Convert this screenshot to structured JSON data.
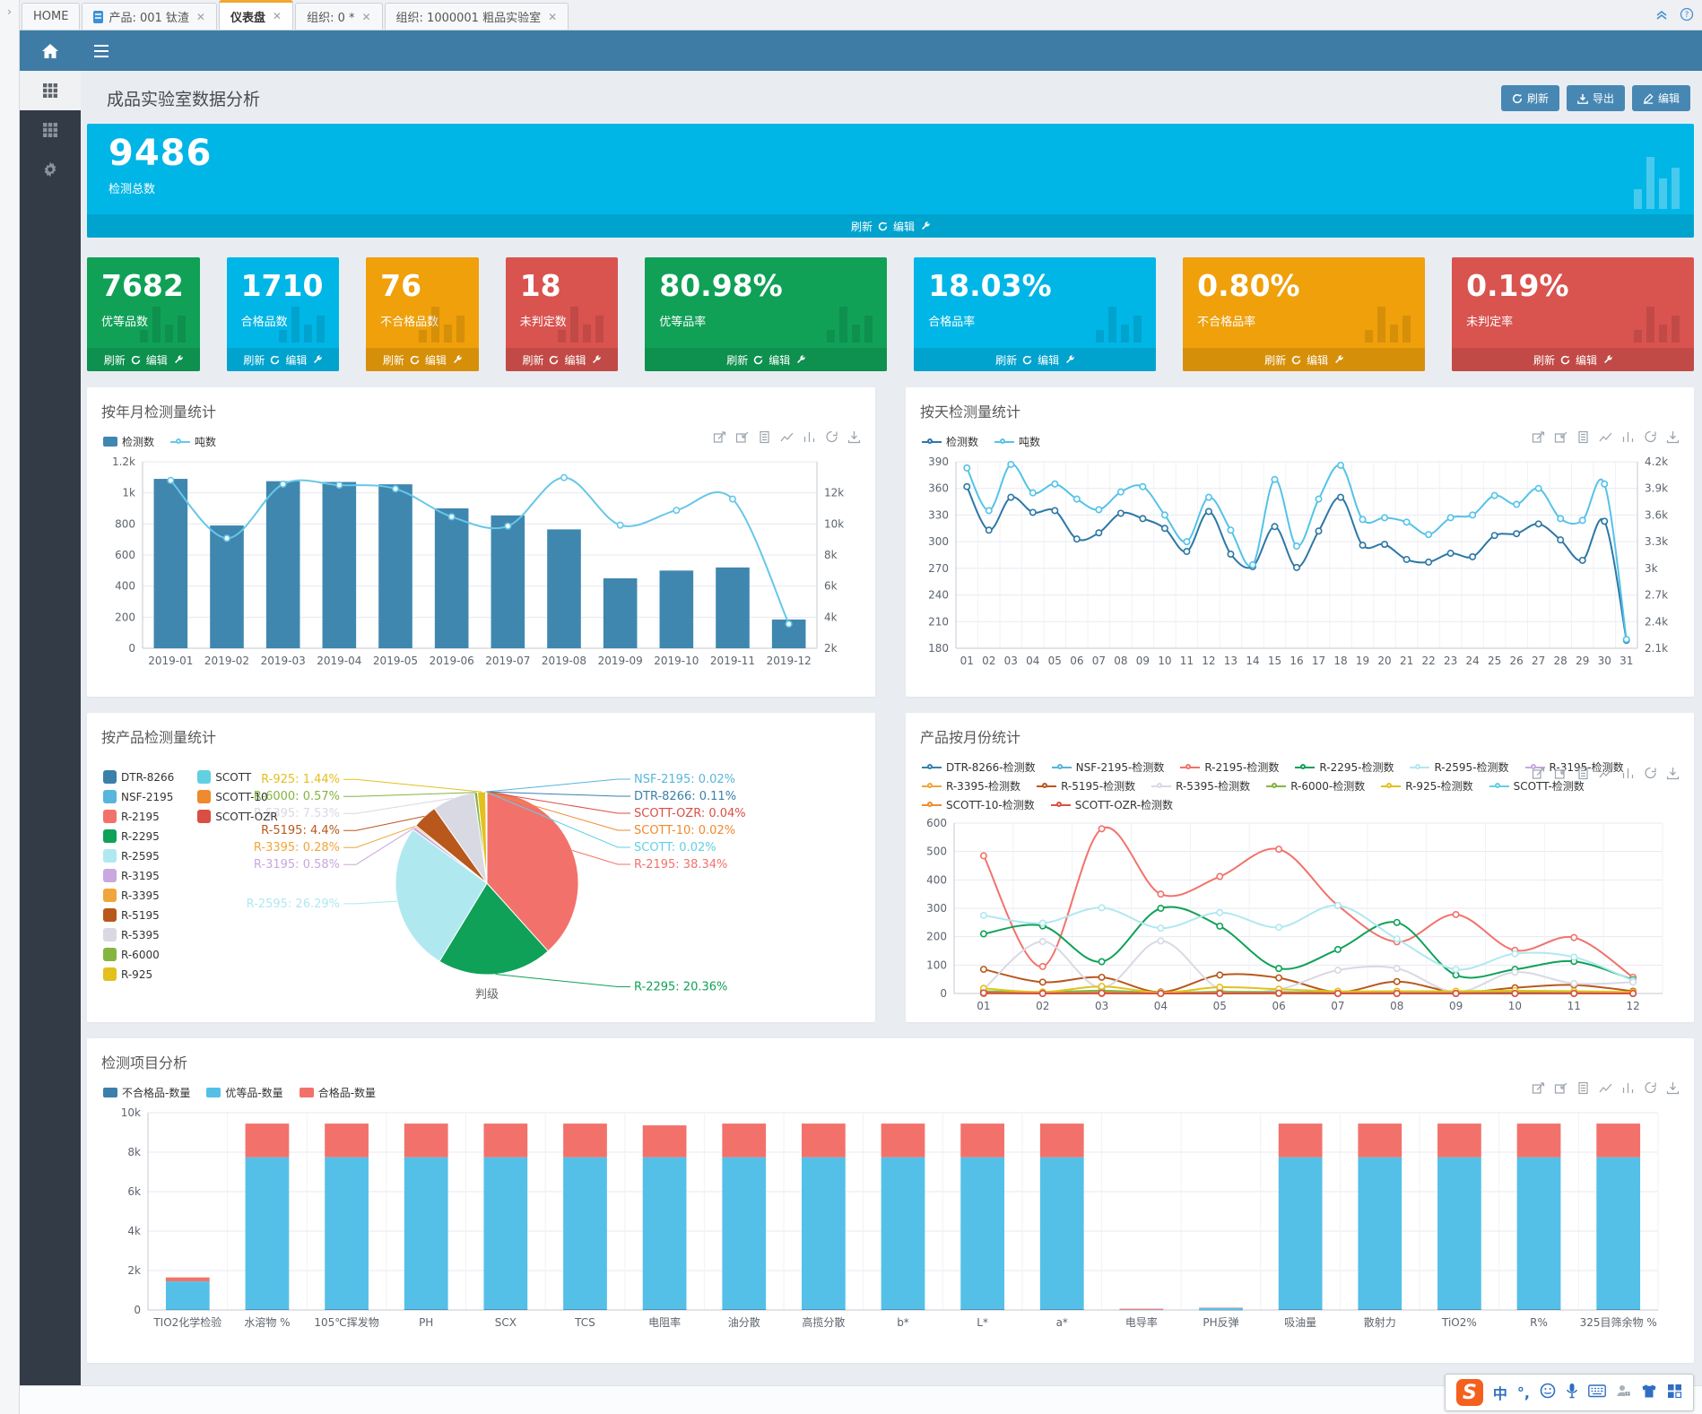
{
  "tabbar": {
    "tabs": [
      {
        "label": "HOME",
        "closable": false,
        "active": false,
        "icon": ""
      },
      {
        "label": "产品: 001 钛渣",
        "closable": true,
        "active": false,
        "icon": "document"
      },
      {
        "label": "仪表盘",
        "closable": true,
        "active": true,
        "icon": ""
      },
      {
        "label": "组织: 0 *",
        "closable": true,
        "active": false,
        "icon": ""
      },
      {
        "label": "组织: 1000001 粗品实验室",
        "closable": true,
        "active": false,
        "icon": ""
      }
    ],
    "close_glyph": "✕"
  },
  "page": {
    "title": "成品实验室数据分析",
    "actions": {
      "refresh": "刷新",
      "export": "导出",
      "edit": "编辑"
    }
  },
  "kpi": {
    "footer": {
      "refresh": "刷新",
      "edit": "编辑"
    },
    "hero": {
      "value": "9486",
      "label": "检测总数",
      "color": "#00b6e6"
    },
    "cards": [
      {
        "value": "7682",
        "label": "优等品数",
        "color": "#10a157",
        "wide": false
      },
      {
        "value": "1710",
        "label": "合格品数",
        "color": "#00b6e6",
        "wide": false
      },
      {
        "value": "76",
        "label": "不合格品数",
        "color": "#efa00b",
        "wide": false
      },
      {
        "value": "18",
        "label": "未判定数",
        "color": "#d9534f",
        "wide": false
      },
      {
        "value": "80.98%",
        "label": "优等品率",
        "color": "#10a157",
        "wide": true
      },
      {
        "value": "18.03%",
        "label": "合格品率",
        "color": "#00b6e6",
        "wide": true
      },
      {
        "value": "0.80%",
        "label": "不合格品率",
        "color": "#efa00b",
        "wide": true
      },
      {
        "value": "0.19%",
        "label": "未判定率",
        "color": "#d9534f",
        "wide": true
      }
    ]
  },
  "chart_data": [
    {
      "id": "monthly",
      "type": "bar",
      "title": "按年月检测量统计",
      "categories": [
        "2019-01",
        "2019-02",
        "2019-03",
        "2019-04",
        "2019-05",
        "2019-06",
        "2019-07",
        "2019-08",
        "2019-09",
        "2019-10",
        "2019-11",
        "2019-12"
      ],
      "series": [
        {
          "name": "检测数",
          "type": "bar",
          "axis": "left",
          "color": "#3f87af",
          "values": [
            1090,
            790,
            1075,
            1070,
            1055,
            900,
            855,
            765,
            450,
            500,
            520,
            185
          ]
        },
        {
          "name": "吨数",
          "type": "line",
          "axis": "right",
          "color": "#67c7e8",
          "values": [
            11000,
            7900,
            10800,
            10750,
            10550,
            9050,
            8550,
            11150,
            8600,
            9400,
            10000,
            3300
          ]
        }
      ],
      "left_axis": {
        "min": 0,
        "max": 1200,
        "ticks": [
          "0",
          "200",
          "400",
          "600",
          "800",
          "1k",
          "1.2k"
        ]
      },
      "right_axis": {
        "min": 2000,
        "max": 12000,
        "ticks": [
          "2k",
          "4k",
          "6k",
          "8k",
          "10k",
          "12k"
        ]
      },
      "grid": true,
      "vgrid": false,
      "legend_position": "top-left"
    },
    {
      "id": "daily",
      "type": "line",
      "title": "按天检测量统计",
      "categories": [
        "01",
        "02",
        "03",
        "04",
        "05",
        "06",
        "07",
        "08",
        "09",
        "10",
        "11",
        "12",
        "13",
        "14",
        "15",
        "16",
        "17",
        "18",
        "19",
        "20",
        "21",
        "22",
        "23",
        "24",
        "25",
        "26",
        "27",
        "28",
        "29",
        "30",
        "31"
      ],
      "series": [
        {
          "name": "检测数",
          "type": "line",
          "axis": "left",
          "color": "#2d77a5",
          "values": [
            362,
            313,
            350,
            333,
            335,
            303,
            310,
            332,
            326,
            315,
            289,
            334,
            286,
            272,
            317,
            271,
            312,
            350,
            296,
            297,
            280,
            277,
            287,
            283,
            307,
            309,
            320,
            302,
            279,
            323,
            189
          ]
        },
        {
          "name": "吨数",
          "type": "line",
          "axis": "right",
          "color": "#54c3e8",
          "values": [
            4130,
            3650,
            4170,
            3850,
            3950,
            3780,
            3660,
            3860,
            3920,
            3600,
            3300,
            3800,
            3430,
            3040,
            4000,
            3250,
            3780,
            4160,
            3550,
            3570,
            3520,
            3380,
            3570,
            3600,
            3820,
            3720,
            3900,
            3560,
            3540,
            3950,
            2200
          ]
        }
      ],
      "left_axis": {
        "min": 180,
        "max": 390,
        "ticks": [
          "180",
          "210",
          "240",
          "270",
          "300",
          "330",
          "360",
          "390"
        ]
      },
      "right_axis": {
        "min": 2100,
        "max": 4200,
        "ticks": [
          "2.1k",
          "2.4k",
          "2.7k",
          "3k",
          "3.3k",
          "3.6k",
          "3.9k",
          "4.2k"
        ]
      },
      "grid": true,
      "vgrid": true,
      "legend_position": "top-left"
    },
    {
      "id": "product_pie",
      "type": "pie",
      "title": "按产品检测量统计",
      "series_label": "判级",
      "legend_cols": [
        [
          "DTR-8266",
          "NSF-2195",
          "R-2195",
          "R-2295",
          "R-2595",
          "R-3195",
          "R-3395",
          "R-5195",
          "R-5395",
          "R-6000",
          "R-925"
        ],
        [
          "SCOTT",
          "SCOTT-10",
          "SCOTT-OZR"
        ]
      ],
      "slices": [
        {
          "name": "R-2195",
          "value": 38.34,
          "pct": "38.34%",
          "color": "#f2726b"
        },
        {
          "name": "R-2295",
          "value": 20.36,
          "pct": "20.36%",
          "color": "#0fa158"
        },
        {
          "name": "R-2595",
          "value": 26.29,
          "pct": "26.29%",
          "color": "#b0e8f0"
        },
        {
          "name": "R-3195",
          "value": 0.58,
          "pct": "0.58%",
          "color": "#c8a8de"
        },
        {
          "name": "R-3395",
          "value": 0.28,
          "pct": "0.28%",
          "color": "#f0a63a"
        },
        {
          "name": "R-5195",
          "value": 4.4,
          "pct": "4.4%",
          "color": "#b8581d"
        },
        {
          "name": "R-5395",
          "value": 7.53,
          "pct": "7.53%",
          "color": "#d8d9e3"
        },
        {
          "name": "R-6000",
          "value": 0.57,
          "pct": "0.57%",
          "color": "#84b540"
        },
        {
          "name": "R-925",
          "value": 1.44,
          "pct": "1.44%",
          "color": "#e3c01e"
        },
        {
          "name": "SCOTT",
          "value": 0.02,
          "pct": "0.02%",
          "color": "#63cfe3"
        },
        {
          "name": "SCOTT-10",
          "value": 0.02,
          "pct": "0.02%",
          "color": "#ef8a2e"
        },
        {
          "name": "SCOTT-OZR",
          "value": 0.04,
          "pct": "0.04%",
          "color": "#da4f44"
        },
        {
          "name": "DTR-8266",
          "value": 0.11,
          "pct": "0.11%",
          "color": "#3a80aa"
        },
        {
          "name": "NSF-2195",
          "value": 0.02,
          "pct": "0.02%",
          "color": "#58b5dc"
        }
      ]
    },
    {
      "id": "product_monthly",
      "type": "line",
      "title": "产品按月份统计",
      "categories": [
        "01",
        "02",
        "03",
        "04",
        "05",
        "06",
        "07",
        "08",
        "09",
        "10",
        "11",
        "12"
      ],
      "left_axis": {
        "min": 0,
        "max": 600,
        "ticks": [
          "0",
          "100",
          "200",
          "300",
          "400",
          "500",
          "600"
        ]
      },
      "series": [
        {
          "name": "DTR-8266-检测数",
          "type": "line",
          "axis": "left",
          "color": "#3a80aa",
          "values": [
            2,
            1,
            1,
            1,
            1,
            1,
            1,
            1,
            1,
            1,
            1,
            0
          ]
        },
        {
          "name": "NSF-2195-检测数",
          "type": "line",
          "axis": "left",
          "color": "#58b5dc",
          "values": [
            0,
            0,
            1,
            0,
            0,
            0,
            0,
            0,
            0,
            0,
            1,
            0
          ]
        },
        {
          "name": "R-2195-检测数",
          "type": "line",
          "axis": "left",
          "color": "#f2726b",
          "values": [
            485,
            95,
            580,
            350,
            412,
            508,
            310,
            182,
            278,
            152,
            197,
            57
          ]
        },
        {
          "name": "R-2295-检测数",
          "type": "line",
          "axis": "left",
          "color": "#0fa158",
          "values": [
            210,
            238,
            112,
            300,
            237,
            88,
            155,
            250,
            65,
            85,
            113,
            48
          ]
        },
        {
          "name": "R-2595-检测数",
          "type": "line",
          "axis": "left",
          "color": "#b0e8f0",
          "values": [
            275,
            248,
            302,
            230,
            285,
            233,
            310,
            192,
            85,
            140,
            128,
            45
          ]
        },
        {
          "name": "R-3195-检测数",
          "type": "line",
          "axis": "left",
          "color": "#c8a8de",
          "values": [
            5,
            3,
            8,
            2,
            6,
            4,
            3,
            5,
            2,
            3,
            4,
            1
          ]
        },
        {
          "name": "R-3395-检测数",
          "type": "line",
          "axis": "left",
          "color": "#f0a63a",
          "values": [
            2,
            1,
            3,
            1,
            2,
            2,
            1,
            2,
            1,
            1,
            1,
            0
          ]
        },
        {
          "name": "R-5195-检测数",
          "type": "line",
          "axis": "left",
          "color": "#b8581d",
          "values": [
            85,
            40,
            57,
            5,
            65,
            55,
            5,
            42,
            5,
            20,
            30,
            8
          ]
        },
        {
          "name": "R-5395-检测数",
          "type": "line",
          "axis": "left",
          "color": "#d8d9e3",
          "values": [
            15,
            183,
            20,
            185,
            15,
            15,
            82,
            88,
            5,
            75,
            35,
            40
          ]
        },
        {
          "name": "R-6000-检测数",
          "type": "line",
          "axis": "left",
          "color": "#84b540",
          "values": [
            8,
            5,
            10,
            3,
            6,
            5,
            4,
            6,
            3,
            4,
            5,
            2
          ]
        },
        {
          "name": "R-925-检测数",
          "type": "line",
          "axis": "left",
          "color": "#e3c01e",
          "values": [
            18,
            5,
            25,
            3,
            22,
            15,
            8,
            8,
            8,
            10,
            8,
            5
          ]
        },
        {
          "name": "SCOTT-检测数",
          "type": "line",
          "axis": "left",
          "color": "#63cfe3",
          "values": [
            1,
            0,
            1,
            0,
            0,
            0,
            0,
            0,
            0,
            0,
            0,
            0
          ]
        },
        {
          "name": "SCOTT-10-检测数",
          "type": "line",
          "axis": "left",
          "color": "#ef8a2e",
          "values": [
            0,
            1,
            0,
            0,
            1,
            0,
            0,
            0,
            0,
            0,
            0,
            0
          ]
        },
        {
          "name": "SCOTT-OZR-检测数",
          "type": "line",
          "axis": "left",
          "color": "#da4f44",
          "values": [
            2,
            0,
            1,
            0,
            0,
            1,
            0,
            0,
            0,
            0,
            0,
            0
          ]
        }
      ],
      "grid": true,
      "vgrid": true,
      "legend_position": "top-left"
    },
    {
      "id": "item_analysis",
      "type": "stacked-bar",
      "title": "检测项目分析",
      "categories": [
        "TIO2化学检验",
        "水溶物 %",
        "105℃挥发物",
        "PH",
        "SCX",
        "TCS",
        "电阻率",
        "油分散",
        "高揽分散",
        "b*",
        "L*",
        "a*",
        "电导率",
        "PH反弹",
        "吸油量",
        "散射力",
        "TiO2%",
        "R%",
        "325目筛余物 %"
      ],
      "left_axis": {
        "min": 0,
        "max": 10000,
        "ticks": [
          "0",
          "2k",
          "4k",
          "6k",
          "8k",
          "10k"
        ]
      },
      "series": [
        {
          "name": "不合格品-数量",
          "color": "#3a80aa",
          "values": [
            20,
            40,
            40,
            40,
            40,
            40,
            40,
            40,
            40,
            40,
            40,
            40,
            0,
            5,
            40,
            40,
            40,
            40,
            40
          ]
        },
        {
          "name": "优等品-数量",
          "color": "#54c0e8",
          "values": [
            1430,
            7700,
            7700,
            7700,
            7700,
            7700,
            7700,
            7700,
            7700,
            7700,
            7700,
            7700,
            15,
            100,
            7700,
            7700,
            7700,
            7700,
            7700
          ]
        },
        {
          "name": "合格品-数量",
          "color": "#f2726b",
          "values": [
            200,
            1710,
            1710,
            1710,
            1710,
            1710,
            1620,
            1710,
            1710,
            1710,
            1710,
            1710,
            50,
            10,
            1710,
            1710,
            1710,
            1710,
            1710
          ]
        }
      ],
      "grid": true,
      "vgrid": true,
      "legend_position": "top-left"
    }
  ],
  "toolbox_icons": [
    "zoom",
    "zoom-reset",
    "data-view",
    "line-switch",
    "bar-switch",
    "restore",
    "save-image"
  ],
  "ime": {
    "lang": "中",
    "punct": "°,"
  }
}
